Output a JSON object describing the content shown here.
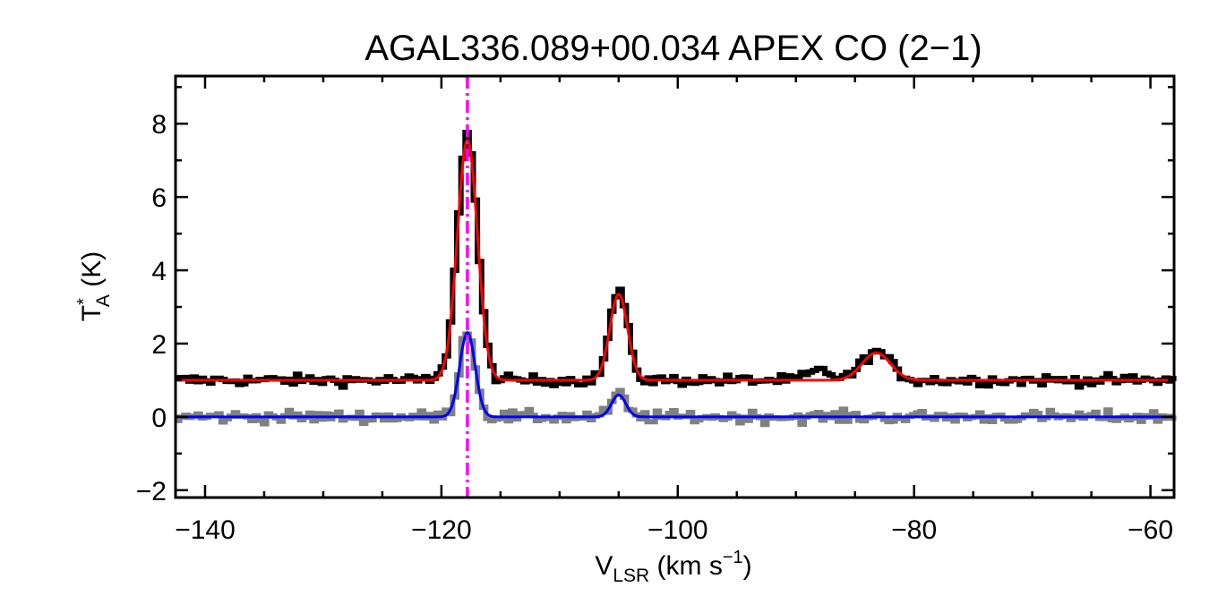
{
  "chart_data": {
    "type": "line",
    "title": "AGAL336.089+00.034  APEX CO (2−1)",
    "xlabel": {
      "main": "V",
      "sub": "LSR",
      "unit_open": " (km s",
      "unit_sup": "−1",
      "unit_close": ")"
    },
    "ylabel": {
      "main": "T",
      "sup": "*",
      "sub": "A",
      "unit": " (K)"
    },
    "xlim": [
      -142.5,
      -58
    ],
    "ylim": [
      -2.2,
      9.3
    ],
    "xticks": [
      -140,
      -120,
      -100,
      -80,
      -60
    ],
    "xtick_labels": [
      "−140",
      "−120",
      "−100",
      "−80",
      "−60"
    ],
    "yticks": [
      -2,
      0,
      2,
      4,
      6,
      8
    ],
    "ytick_labels": [
      "−2",
      "0",
      "2",
      "4",
      "6",
      "8"
    ],
    "grid": false,
    "marker_line": {
      "x": -117.8,
      "color": "#ff00ff",
      "style": "dash-dot"
    },
    "series": [
      {
        "style": "histogram",
        "color": "#000000",
        "baseline": 1.0,
        "noise": 0.14,
        "components": [
          {
            "amp": 6.7,
            "center": -117.8,
            "sigma": 0.85
          },
          {
            "amp": 2.45,
            "center": -105.0,
            "sigma": 0.75
          },
          {
            "amp": 0.78,
            "center": -83.2,
            "sigma": 1.2
          },
          {
            "amp": 0.25,
            "center": -88.0,
            "sigma": 1.0
          }
        ]
      },
      {
        "style": "line",
        "color": "#ff0000",
        "baseline": 1.0,
        "components": [
          {
            "amp": 6.55,
            "center": -117.8,
            "sigma": 0.85
          },
          {
            "amp": 2.35,
            "center": -105.0,
            "sigma": 0.75
          },
          {
            "amp": 0.75,
            "center": -83.2,
            "sigma": 1.2
          }
        ]
      },
      {
        "style": "histogram",
        "color": "#808080",
        "baseline": 0.0,
        "noise": 0.16,
        "components": [
          {
            "amp": 2.4,
            "center": -117.8,
            "sigma": 0.65
          },
          {
            "amp": 0.62,
            "center": -105.0,
            "sigma": 0.6
          }
        ]
      },
      {
        "style": "line",
        "color": "#0000ff",
        "baseline": 0.0,
        "components": [
          {
            "amp": 2.3,
            "center": -117.8,
            "sigma": 0.65
          },
          {
            "amp": 0.6,
            "center": -105.0,
            "sigma": 0.6
          }
        ]
      }
    ]
  }
}
